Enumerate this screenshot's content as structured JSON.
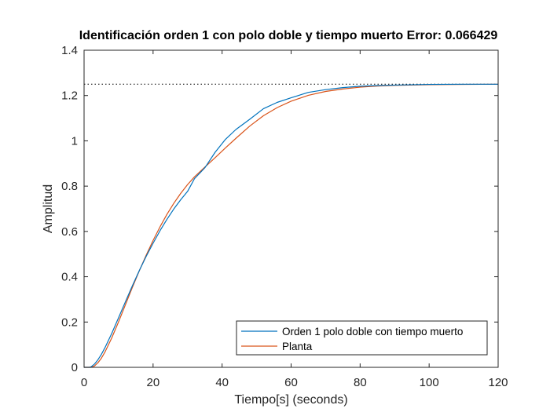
{
  "chart_data": {
    "type": "line",
    "title": "Identificación orden 1 con polo doble y tiempo muerto Error: 0.066429",
    "xlabel": "Tiempo[s] (seconds)",
    "ylabel": "Amplitud",
    "xlim": [
      0,
      120
    ],
    "ylim": [
      0,
      1.4
    ],
    "xticks": [
      0,
      20,
      40,
      60,
      80,
      100,
      120
    ],
    "yticks": [
      0,
      0.2,
      0.4,
      0.6,
      0.8,
      1,
      1.2,
      1.4
    ],
    "xtick_labels": [
      "0",
      "20",
      "40",
      "60",
      "80",
      "100",
      "120"
    ],
    "ytick_labels": [
      "0",
      "0.2",
      "0.4",
      "0.6",
      "0.8",
      "1",
      "1.2",
      "1.4"
    ],
    "grid": false,
    "legend_position": "bottom-right",
    "reference_line": {
      "y": 1.25,
      "style": "dotted",
      "color": "#000000"
    },
    "series": [
      {
        "name": "Orden 1 polo doble con tiempo muerto",
        "color": "#0072BD",
        "x": [
          0,
          1.5,
          2,
          3,
          4,
          5,
          6,
          8,
          10,
          12,
          14,
          16,
          18,
          20,
          22,
          24,
          26,
          28,
          30,
          32,
          35,
          38,
          41,
          44,
          48,
          52,
          56,
          60,
          65,
          70,
          75,
          80,
          85,
          90,
          100,
          110,
          120
        ],
        "y": [
          0,
          0,
          0.002,
          0.014,
          0.033,
          0.057,
          0.085,
          0.149,
          0.219,
          0.29,
          0.36,
          0.427,
          0.49,
          0.548,
          0.603,
          0.653,
          0.699,
          0.74,
          0.777,
          0.833,
          0.881,
          0.95,
          1.007,
          1.05,
          1.095,
          1.142,
          1.17,
          1.19,
          1.214,
          1.226,
          1.235,
          1.241,
          1.244,
          1.246,
          1.249,
          1.25,
          1.25
        ]
      },
      {
        "name": "Planta",
        "color": "#D95319",
        "x": [
          0,
          2,
          3,
          4,
          5,
          6,
          8,
          10,
          12,
          14,
          16,
          18,
          20,
          22,
          24,
          26,
          28,
          30,
          32,
          35,
          38,
          41,
          44,
          48,
          52,
          56,
          60,
          65,
          70,
          75,
          80,
          85,
          90,
          100,
          110,
          120
        ],
        "y": [
          0,
          0,
          0.006,
          0.02,
          0.04,
          0.066,
          0.129,
          0.201,
          0.277,
          0.353,
          0.426,
          0.495,
          0.56,
          0.62,
          0.675,
          0.724,
          0.768,
          0.807,
          0.841,
          0.884,
          0.926,
          0.969,
          1.011,
          1.065,
          1.111,
          1.147,
          1.175,
          1.201,
          1.218,
          1.229,
          1.237,
          1.242,
          1.245,
          1.248,
          1.249,
          1.25
        ]
      }
    ]
  }
}
